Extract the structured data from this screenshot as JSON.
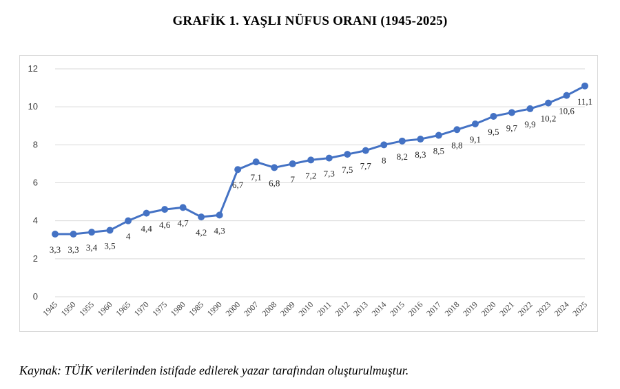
{
  "chart_data": {
    "type": "line",
    "title": "GRAFİK 1. YAŞLI NÜFUS ORANI (1945-2025)",
    "xlabel": "",
    "ylabel": "",
    "ylim": [
      0,
      12
    ],
    "yticks": [
      0,
      2,
      4,
      6,
      8,
      10,
      12
    ],
    "grid": true,
    "legend": "none",
    "series_color": "#4472c4",
    "categories": [
      "1945",
      "1950",
      "1955",
      "1960",
      "1965",
      "1970",
      "1975",
      "1980",
      "1985",
      "1990",
      "2000",
      "2007",
      "2008",
      "2009",
      "2010",
      "2011",
      "2012",
      "2013",
      "2014",
      "2015",
      "2016",
      "2017",
      "2018",
      "2019",
      "2020",
      "2021",
      "2022",
      "2023",
      "2024",
      "2025"
    ],
    "series": [
      {
        "values": [
          3.3,
          3.3,
          3.4,
          3.5,
          4,
          4.4,
          4.6,
          4.7,
          4.2,
          4.3,
          6.7,
          7.1,
          6.8,
          7,
          7.2,
          7.3,
          7.5,
          7.7,
          8,
          8.2,
          8.3,
          8.5,
          8.8,
          9.1,
          9.5,
          9.7,
          9.9,
          10.2,
          10.6,
          11.1
        ],
        "data_labels": [
          "3,3",
          "3,3",
          "3,4",
          "3,5",
          "4",
          "4,4",
          "4,6",
          "4,7",
          "4,2",
          "4,3",
          "6,7",
          "7,1",
          "6,8",
          "7",
          "7,2",
          "7,3",
          "7,5",
          "7,7",
          "8",
          "8,2",
          "8,3",
          "8,5",
          "8,8",
          "9,1",
          "9,5",
          "9,7",
          "9,9",
          "10,2",
          "10,6",
          "11,1"
        ]
      }
    ]
  },
  "source_text": "Kaynak: TÜİK verilerinden istifade edilerek yazar tarafından oluşturulmuştur."
}
